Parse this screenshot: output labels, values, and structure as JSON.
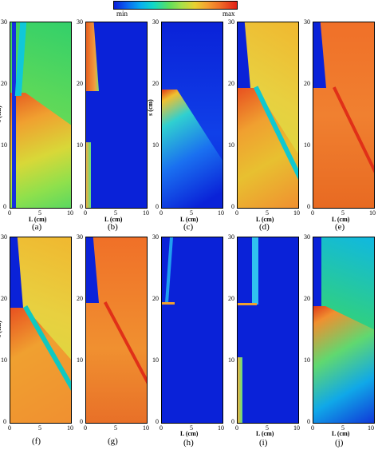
{
  "colorbar": {
    "min_label": "min",
    "max_label": "max"
  },
  "axes": {
    "ylabel": "s (cm)",
    "xlabel": "L (cm)",
    "yticks": [
      "30",
      "20",
      "10",
      "0"
    ],
    "xticks": [
      "0",
      "5",
      "10"
    ],
    "xticks_short_last": "10"
  },
  "panels": [
    {
      "caption": "(a)"
    },
    {
      "caption": "(b)"
    },
    {
      "caption": "(c)"
    },
    {
      "caption": "(d)"
    },
    {
      "caption": "(e)"
    },
    {
      "caption": "(f)"
    },
    {
      "caption": "(g)"
    },
    {
      "caption": "(h)"
    },
    {
      "caption": "(i)"
    },
    {
      "caption": "(j)"
    }
  ],
  "colors": {
    "low": "#0a22d8",
    "mid": "#5fdc4e",
    "high": "#e23a18"
  }
}
